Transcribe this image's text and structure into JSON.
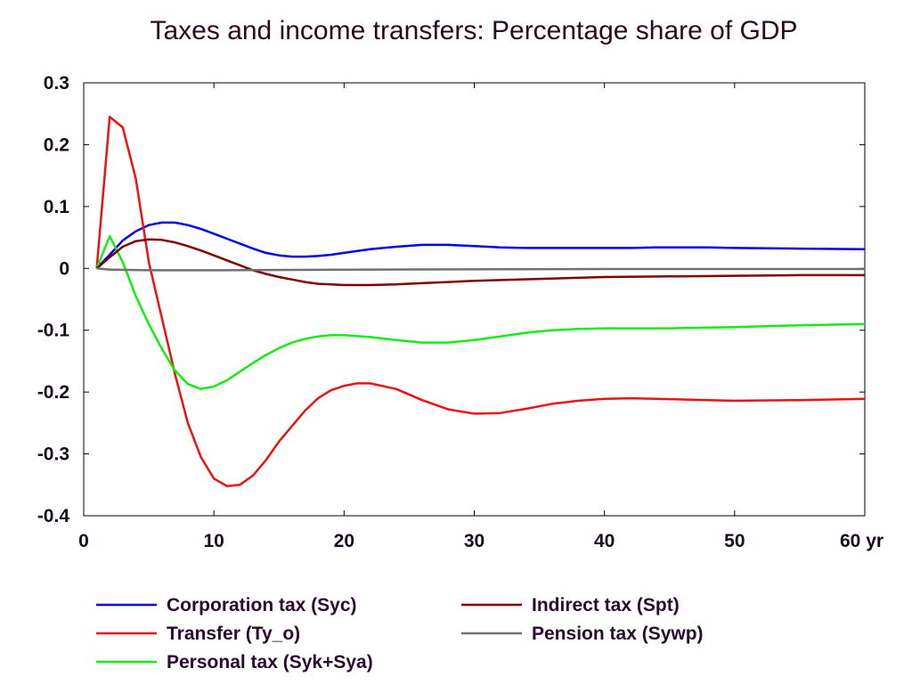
{
  "chart_data": {
    "type": "line",
    "title": "Taxes and income transfers: Percentage share of GDP",
    "xlabel": "",
    "ylabel": "",
    "x_unit_label": "yr",
    "xlim": [
      0,
      60
    ],
    "ylim": [
      -0.4,
      0.3
    ],
    "xticks": [
      0,
      10,
      20,
      30,
      40,
      50,
      60
    ],
    "xtick_labels": [
      "0",
      "10",
      "20",
      "30",
      "40",
      "50",
      "60 yr"
    ],
    "yticks": [
      -0.4,
      -0.3,
      -0.2,
      -0.1,
      0,
      0.1,
      0.2,
      0.3
    ],
    "ytick_labels": [
      "-0.4",
      "-0.3",
      "-0.2",
      "-0.1",
      "0",
      "0.1",
      "0.2",
      "0.3"
    ],
    "grid": false,
    "legend_position": "bottom",
    "series": [
      {
        "name": "Corporation tax (Syc)",
        "color": "#0000ee",
        "points": [
          [
            1,
            0
          ],
          [
            2,
            0.022
          ],
          [
            3,
            0.045
          ],
          [
            4,
            0.06
          ],
          [
            5,
            0.07
          ],
          [
            6,
            0.074
          ],
          [
            7,
            0.074
          ],
          [
            8,
            0.07
          ],
          [
            9,
            0.064
          ],
          [
            10,
            0.056
          ],
          [
            11,
            0.048
          ],
          [
            12,
            0.04
          ],
          [
            13,
            0.032
          ],
          [
            14,
            0.025
          ],
          [
            15,
            0.021
          ],
          [
            16,
            0.019
          ],
          [
            17,
            0.019
          ],
          [
            18,
            0.02
          ],
          [
            19,
            0.022
          ],
          [
            20,
            0.025
          ],
          [
            22,
            0.031
          ],
          [
            24,
            0.035
          ],
          [
            26,
            0.038
          ],
          [
            28,
            0.038
          ],
          [
            30,
            0.036
          ],
          [
            32,
            0.034
          ],
          [
            34,
            0.033
          ],
          [
            36,
            0.033
          ],
          [
            38,
            0.033
          ],
          [
            40,
            0.033
          ],
          [
            42,
            0.033
          ],
          [
            44,
            0.034
          ],
          [
            46,
            0.034
          ],
          [
            48,
            0.034
          ],
          [
            50,
            0.033
          ],
          [
            55,
            0.032
          ],
          [
            60,
            0.031
          ]
        ]
      },
      {
        "name": "Transfer (Ty_o)",
        "color": "#ee1111",
        "points": [
          [
            1,
            0
          ],
          [
            2,
            0.245
          ],
          [
            3,
            0.228
          ],
          [
            4,
            0.145
          ],
          [
            5,
            0.01
          ],
          [
            6,
            -0.08
          ],
          [
            7,
            -0.17
          ],
          [
            8,
            -0.25
          ],
          [
            9,
            -0.305
          ],
          [
            10,
            -0.34
          ],
          [
            11,
            -0.352
          ],
          [
            12,
            -0.35
          ],
          [
            13,
            -0.335
          ],
          [
            14,
            -0.31
          ],
          [
            15,
            -0.28
          ],
          [
            16,
            -0.255
          ],
          [
            17,
            -0.23
          ],
          [
            18,
            -0.21
          ],
          [
            19,
            -0.197
          ],
          [
            20,
            -0.19
          ],
          [
            21,
            -0.186
          ],
          [
            22,
            -0.186
          ],
          [
            24,
            -0.195
          ],
          [
            26,
            -0.213
          ],
          [
            28,
            -0.228
          ],
          [
            30,
            -0.235
          ],
          [
            32,
            -0.234
          ],
          [
            34,
            -0.227
          ],
          [
            36,
            -0.219
          ],
          [
            38,
            -0.214
          ],
          [
            40,
            -0.211
          ],
          [
            42,
            -0.21
          ],
          [
            44,
            -0.211
          ],
          [
            46,
            -0.212
          ],
          [
            48,
            -0.213
          ],
          [
            50,
            -0.214
          ],
          [
            55,
            -0.213
          ],
          [
            60,
            -0.211
          ]
        ]
      },
      {
        "name": "Personal tax (Syk+Sya)",
        "color": "#11ee11",
        "points": [
          [
            1,
            0
          ],
          [
            2,
            0.052
          ],
          [
            3,
            0.01
          ],
          [
            4,
            -0.045
          ],
          [
            5,
            -0.09
          ],
          [
            6,
            -0.13
          ],
          [
            7,
            -0.165
          ],
          [
            8,
            -0.187
          ],
          [
            9,
            -0.195
          ],
          [
            10,
            -0.191
          ],
          [
            11,
            -0.181
          ],
          [
            12,
            -0.167
          ],
          [
            13,
            -0.153
          ],
          [
            14,
            -0.14
          ],
          [
            15,
            -0.129
          ],
          [
            16,
            -0.12
          ],
          [
            17,
            -0.114
          ],
          [
            18,
            -0.11
          ],
          [
            19,
            -0.108
          ],
          [
            20,
            -0.108
          ],
          [
            22,
            -0.111
          ],
          [
            24,
            -0.116
          ],
          [
            26,
            -0.12
          ],
          [
            28,
            -0.12
          ],
          [
            30,
            -0.116
          ],
          [
            32,
            -0.11
          ],
          [
            34,
            -0.104
          ],
          [
            36,
            -0.1
          ],
          [
            38,
            -0.098
          ],
          [
            40,
            -0.097
          ],
          [
            45,
            -0.097
          ],
          [
            50,
            -0.095
          ],
          [
            55,
            -0.092
          ],
          [
            60,
            -0.09
          ]
        ]
      },
      {
        "name": "Indirect tax (Spt)",
        "color": "#800000",
        "points": [
          [
            1,
            0
          ],
          [
            2,
            0.018
          ],
          [
            3,
            0.035
          ],
          [
            4,
            0.044
          ],
          [
            5,
            0.047
          ],
          [
            6,
            0.046
          ],
          [
            7,
            0.042
          ],
          [
            8,
            0.036
          ],
          [
            9,
            0.029
          ],
          [
            10,
            0.021
          ],
          [
            11,
            0.013
          ],
          [
            12,
            0.005
          ],
          [
            13,
            -0.003
          ],
          [
            14,
            -0.009
          ],
          [
            15,
            -0.014
          ],
          [
            16,
            -0.018
          ],
          [
            17,
            -0.022
          ],
          [
            18,
            -0.025
          ],
          [
            19,
            -0.026
          ],
          [
            20,
            -0.027
          ],
          [
            22,
            -0.027
          ],
          [
            24,
            -0.026
          ],
          [
            26,
            -0.024
          ],
          [
            28,
            -0.022
          ],
          [
            30,
            -0.02
          ],
          [
            35,
            -0.017
          ],
          [
            40,
            -0.014
          ],
          [
            45,
            -0.013
          ],
          [
            50,
            -0.012
          ],
          [
            55,
            -0.011
          ],
          [
            60,
            -0.011
          ]
        ]
      },
      {
        "name": "Pension tax (Sywp)",
        "color": "#707070",
        "points": [
          [
            1,
            0
          ],
          [
            2,
            -0.002
          ],
          [
            5,
            -0.003
          ],
          [
            10,
            -0.003
          ],
          [
            20,
            -0.002
          ],
          [
            40,
            -0.001
          ],
          [
            60,
            -0.001
          ]
        ]
      }
    ]
  }
}
